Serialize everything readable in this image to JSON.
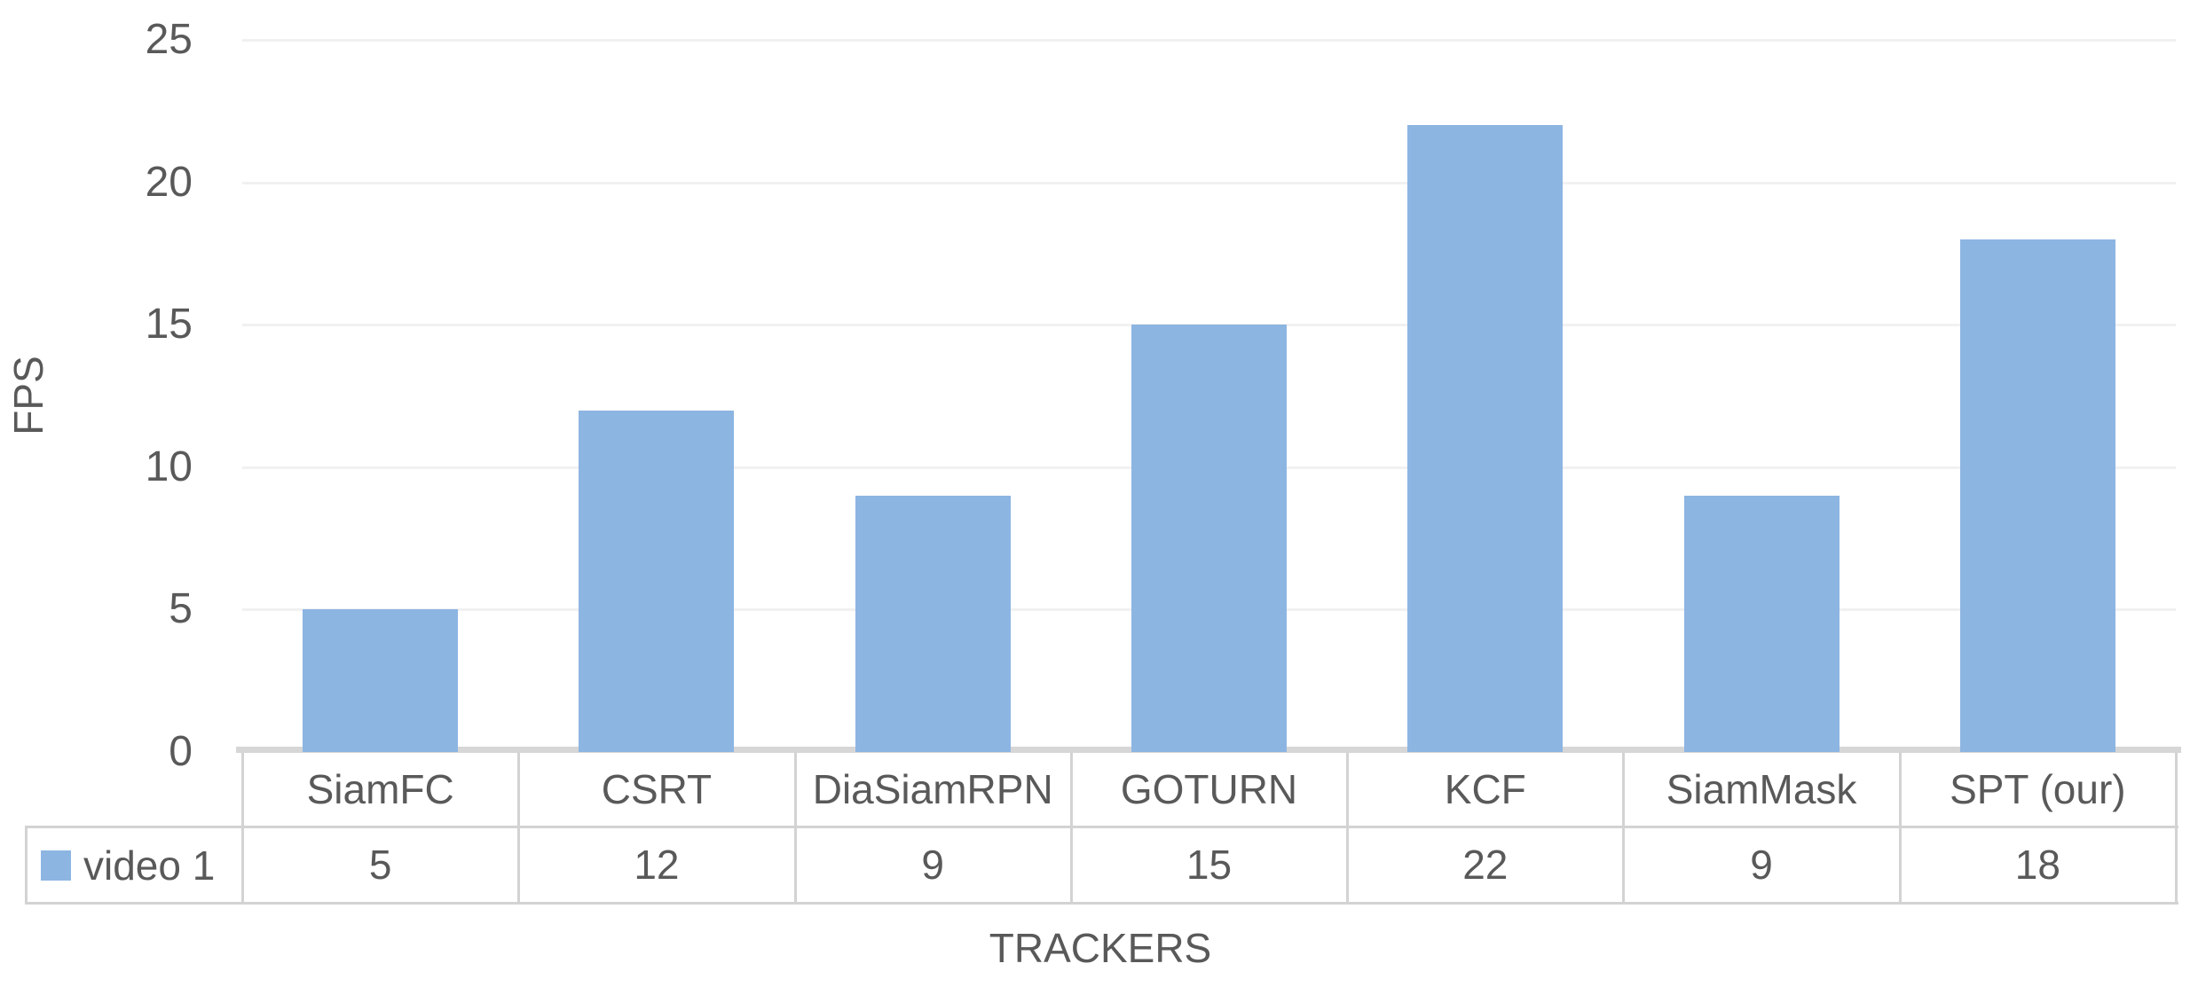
{
  "chart_data": {
    "type": "bar",
    "title": "",
    "categories": [
      "SiamFC",
      "CSRT",
      "DiaSiamRPN",
      "GOTURN",
      "KCF",
      "SiamMask",
      "SPT (our)"
    ],
    "series": [
      {
        "name": "video 1",
        "values": [
          5,
          12,
          9,
          15,
          22,
          9,
          18
        ]
      }
    ],
    "xlabel": "TRACKERS",
    "ylabel": "FPS",
    "ylim": [
      0,
      25
    ],
    "yticks": [
      0,
      5,
      10,
      15,
      20,
      25
    ],
    "grid": "horizontal-light",
    "legend_position": "data-table-row-header",
    "data_table_shown": true,
    "bar_color": "#8CB5E2"
  },
  "colors": {
    "bar": "#8CB5E2",
    "text": "#595959",
    "gridline": "#F1F1F1",
    "table_border": "#D3D3D3",
    "axis_line": "#D6D6D6",
    "background": "#FFFFFF"
  }
}
